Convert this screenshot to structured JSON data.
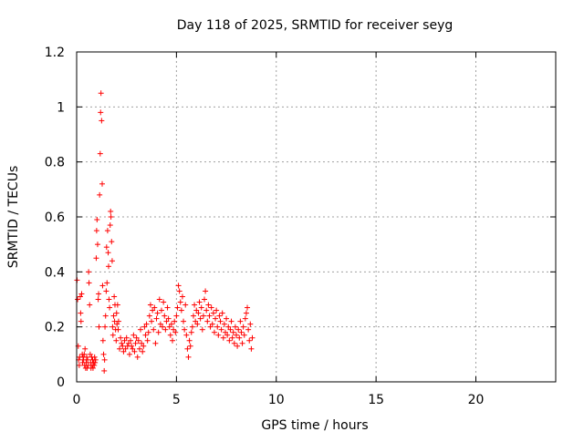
{
  "chart_data": {
    "type": "scatter",
    "title": "Day 118 of 2025, SRMTID for receiver seyg",
    "xlabel": "GPS time / hours",
    "ylabel": "SRMTID / TECUs",
    "xlim": [
      0,
      24
    ],
    "ylim": [
      0,
      1.2
    ],
    "x_ticks": [
      0,
      5,
      10,
      15,
      20
    ],
    "x_tick_labels": [
      "0",
      "5",
      "10",
      "15",
      "20"
    ],
    "y_ticks": [
      0,
      0.2,
      0.4,
      0.6,
      0.8,
      1.0,
      1.2
    ],
    "y_tick_labels": [
      "0",
      "0.2",
      "0.4",
      "0.6",
      "0.8",
      "1",
      "1.2"
    ],
    "grid": true,
    "marker": "+",
    "series": [
      {
        "name": "SRMTID",
        "color": "#ff0000",
        "x": [
          0.02,
          0.05,
          0.08,
          0.1,
          0.13,
          0.15,
          0.18,
          0.2,
          0.22,
          0.25,
          0.28,
          0.3,
          0.32,
          0.35,
          0.38,
          0.4,
          0.42,
          0.45,
          0.48,
          0.5,
          0.52,
          0.55,
          0.58,
          0.6,
          0.62,
          0.65,
          0.68,
          0.7,
          0.72,
          0.75,
          0.78,
          0.8,
          0.82,
          0.85,
          0.88,
          0.9,
          0.92,
          0.95,
          0.98,
          1.0,
          1.02,
          1.05,
          1.08,
          1.1,
          1.12,
          1.15,
          1.18,
          1.2,
          1.22,
          1.25,
          1.28,
          1.3,
          1.32,
          1.35,
          1.38,
          1.4,
          1.42,
          1.45,
          1.48,
          1.5,
          1.52,
          1.55,
          1.58,
          1.6,
          1.62,
          1.65,
          1.68,
          1.7,
          1.72,
          1.75,
          1.78,
          1.8,
          1.82,
          1.85,
          1.88,
          1.9,
          1.92,
          1.95,
          1.98,
          2.0,
          2.02,
          2.05,
          2.08,
          2.1,
          2.15,
          2.2,
          2.25,
          2.3,
          2.35,
          2.4,
          2.45,
          2.5,
          2.55,
          2.6,
          2.65,
          2.7,
          2.75,
          2.8,
          2.85,
          2.9,
          2.95,
          3.0,
          3.05,
          3.1,
          3.15,
          3.2,
          3.25,
          3.3,
          3.35,
          3.4,
          3.45,
          3.5,
          3.55,
          3.6,
          3.65,
          3.7,
          3.75,
          3.8,
          3.85,
          3.9,
          3.95,
          4.0,
          4.05,
          4.1,
          4.15,
          4.2,
          4.25,
          4.3,
          4.35,
          4.4,
          4.45,
          4.5,
          4.55,
          4.6,
          4.65,
          4.7,
          4.75,
          4.8,
          4.85,
          4.9,
          4.95,
          5.0,
          5.05,
          5.1,
          5.15,
          5.2,
          5.25,
          5.3,
          5.35,
          5.4,
          5.45,
          5.5,
          5.55,
          5.6,
          5.65,
          5.7,
          5.75,
          5.8,
          5.85,
          5.9,
          5.95,
          6.0,
          6.05,
          6.1,
          6.15,
          6.2,
          6.25,
          6.3,
          6.35,
          6.4,
          6.45,
          6.5,
          6.55,
          6.6,
          6.65,
          6.7,
          6.75,
          6.8,
          6.85,
          6.9,
          6.95,
          7.0,
          7.05,
          7.1,
          7.15,
          7.2,
          7.25,
          7.3,
          7.35,
          7.4,
          7.45,
          7.5,
          7.55,
          7.6,
          7.65,
          7.7,
          7.75,
          7.8,
          7.85,
          7.9,
          7.95,
          8.0,
          8.05,
          8.1,
          8.15,
          8.2,
          8.25,
          8.3,
          8.35,
          8.4,
          8.45,
          8.5,
          8.55,
          8.6,
          8.65,
          8.7,
          8.75,
          8.8
        ],
        "y": [
          0.37,
          0.3,
          0.13,
          0.08,
          0.06,
          0.09,
          0.31,
          0.25,
          0.22,
          0.32,
          0.1,
          0.07,
          0.09,
          0.08,
          0.1,
          0.06,
          0.12,
          0.05,
          0.07,
          0.09,
          0.05,
          0.08,
          0.06,
          0.4,
          0.36,
          0.28,
          0.1,
          0.07,
          0.05,
          0.09,
          0.06,
          0.08,
          0.05,
          0.07,
          0.06,
          0.09,
          0.07,
          0.08,
          0.45,
          0.55,
          0.59,
          0.5,
          0.3,
          0.32,
          0.2,
          0.68,
          0.83,
          0.98,
          1.05,
          0.95,
          0.72,
          0.35,
          0.15,
          0.1,
          0.04,
          0.08,
          0.2,
          0.24,
          0.33,
          0.49,
          0.36,
          0.55,
          0.47,
          0.42,
          0.3,
          0.27,
          0.57,
          0.62,
          0.6,
          0.51,
          0.44,
          0.2,
          0.17,
          0.24,
          0.31,
          0.22,
          0.28,
          0.19,
          0.15,
          0.25,
          0.21,
          0.28,
          0.19,
          0.22,
          0.12,
          0.16,
          0.14,
          0.13,
          0.11,
          0.15,
          0.12,
          0.16,
          0.13,
          0.14,
          0.1,
          0.15,
          0.13,
          0.12,
          0.17,
          0.11,
          0.14,
          0.16,
          0.09,
          0.15,
          0.12,
          0.19,
          0.14,
          0.11,
          0.13,
          0.2,
          0.17,
          0.21,
          0.15,
          0.18,
          0.24,
          0.28,
          0.22,
          0.26,
          0.19,
          0.27,
          0.14,
          0.23,
          0.25,
          0.18,
          0.3,
          0.21,
          0.26,
          0.2,
          0.29,
          0.24,
          0.19,
          0.22,
          0.27,
          0.23,
          0.2,
          0.17,
          0.21,
          0.15,
          0.19,
          0.22,
          0.18,
          0.24,
          0.27,
          0.35,
          0.33,
          0.29,
          0.26,
          0.31,
          0.22,
          0.19,
          0.28,
          0.17,
          0.12,
          0.09,
          0.15,
          0.13,
          0.18,
          0.2,
          0.24,
          0.28,
          0.22,
          0.26,
          0.21,
          0.25,
          0.29,
          0.23,
          0.27,
          0.19,
          0.24,
          0.3,
          0.33,
          0.26,
          0.22,
          0.28,
          0.24,
          0.2,
          0.27,
          0.21,
          0.25,
          0.18,
          0.23,
          0.26,
          0.2,
          0.17,
          0.24,
          0.22,
          0.19,
          0.25,
          0.16,
          0.21,
          0.18,
          0.23,
          0.17,
          0.2,
          0.15,
          0.19,
          0.22,
          0.16,
          0.18,
          0.14,
          0.2,
          0.17,
          0.13,
          0.19,
          0.16,
          0.22,
          0.18,
          0.14,
          0.2,
          0.17,
          0.23,
          0.25,
          0.27,
          0.19,
          0.15,
          0.21,
          0.12,
          0.16
        ]
      }
    ]
  }
}
